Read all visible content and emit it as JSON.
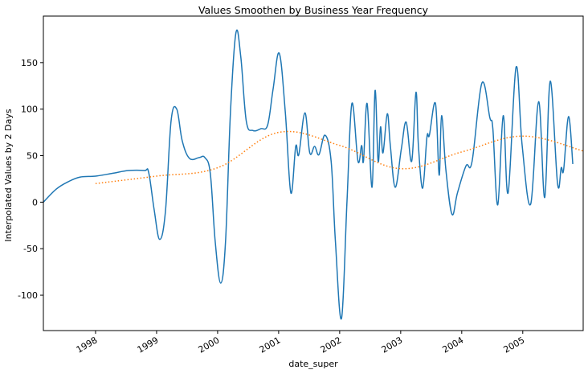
{
  "chart_data": {
    "type": "line",
    "title": "Values Smoothen by Business Year Frequency",
    "x_label": "date_super",
    "y_label": "Interpolated Values by 2 Days",
    "xlim": [
      1997.145,
      2005.99
    ],
    "ylim": [
      -138,
      200
    ],
    "xticks": [
      1998,
      1999,
      2000,
      2001,
      2002,
      2003,
      2004,
      2005
    ],
    "yticks": [
      -100,
      -50,
      0,
      50,
      100,
      150
    ],
    "grid": false,
    "series": [
      {
        "color": "#1f77b4",
        "style": "solid",
        "x": [
          1997.145,
          1997.355,
          1997.553,
          1997.75,
          1998.0,
          1998.276,
          1998.54,
          1998.8,
          1998.87,
          1998.96,
          1999.05,
          1999.145,
          1999.237,
          1999.33,
          1999.42,
          1999.54,
          1999.7,
          1999.79,
          1999.88,
          1999.96,
          2000.05,
          2000.13,
          2000.21,
          2000.3,
          2000.38,
          2000.47,
          2000.58,
          2000.71,
          2000.82,
          2000.91,
          2001.01,
          2001.11,
          2001.2,
          2001.28,
          2001.33,
          2001.43,
          2001.51,
          2001.59,
          2001.66,
          2001.76,
          2001.86,
          2001.93,
          2002.03,
          2002.12,
          2002.2,
          2002.3,
          2002.36,
          2002.39,
          2002.45,
          2002.53,
          2002.58,
          2002.63,
          2002.67,
          2002.71,
          2002.78,
          2002.83,
          2002.91,
          2003.01,
          2003.09,
          2003.18,
          2003.25,
          2003.29,
          2003.36,
          2003.43,
          2003.47,
          2003.57,
          2003.63,
          2003.67,
          2003.74,
          2003.84,
          2003.93,
          2004.07,
          2004.17,
          2004.33,
          2004.46,
          2004.51,
          2004.59,
          2004.68,
          2004.76,
          2004.89,
          2004.99,
          2005.13,
          2005.26,
          2005.36,
          2005.45,
          2005.57,
          2005.63,
          2005.67,
          2005.75,
          2005.82
        ],
        "values": [
          0,
          14,
          22,
          27,
          28,
          31,
          34,
          34,
          32,
          -8,
          -40,
          -10,
          87,
          100,
          66,
          47,
          48,
          48,
          31,
          -42,
          -87,
          -42,
          96,
          182,
          156,
          87,
          77,
          79,
          83,
          122,
          160,
          96,
          10,
          60,
          51,
          96,
          53,
          60,
          51,
          72,
          44,
          -42,
          -125,
          1,
          106,
          44,
          61,
          44,
          106,
          16,
          120,
          44,
          81,
          53,
          95,
          61,
          16,
          57,
          86,
          44,
          118,
          61,
          15,
          70,
          72,
          106,
          29,
          93,
          35,
          -13,
          10,
          39,
          44,
          128,
          91,
          79,
          -3,
          93,
          10,
          145,
          61,
          -2,
          108,
          5,
          130,
          20,
          37,
          35,
          92,
          41
        ]
      },
      {
        "color": "#ff7f0e",
        "style": "dotted",
        "x": [
          1998.0,
          1999.0,
          2000.0,
          2001.0,
          2002.0,
          2003.0,
          2004.0,
          2005.0,
          2005.99
        ],
        "values": [
          20,
          28,
          37,
          75,
          61,
          36,
          54,
          71,
          55
        ]
      }
    ]
  }
}
